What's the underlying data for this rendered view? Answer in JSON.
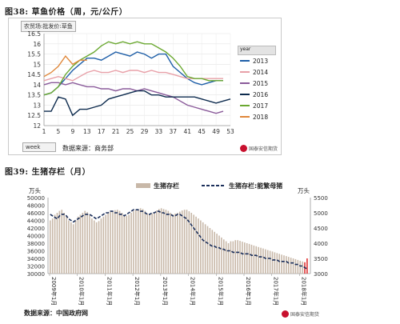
{
  "figures": {
    "fig38_title": "图38: 草鱼价格（周，元/公斤）",
    "fig38_tag": "农贸场:批发价:草鱼",
    "fig38_week_selector": "week",
    "fig38_source": "数据来源：商务部",
    "fig39_title": "图39: 生猪存栏（月）",
    "fig39_source": "数据来源：中国政府网",
    "logo_text": "国泰安信期货",
    "legend_head": "year"
  },
  "colors": {
    "2013": "#1f5fa8",
    "2014": "#e8a0a8",
    "2015": "#8a5a9a",
    "2016": "#0d2b4e",
    "2017": "#6aa830",
    "2018": "#e0873a",
    "bars": "#c8b8a8",
    "bar_highlight": "#e03030",
    "sows_line": "#1a2e5a"
  },
  "chart_data": [
    {
      "type": "line",
      "x_ticks": [
        "1",
        "5",
        "9",
        "13",
        "17",
        "21",
        "25",
        "29",
        "33",
        "37",
        "41",
        "45",
        "49",
        "53"
      ],
      "y_ticks": [
        "12",
        "12.5",
        "13",
        "13.5",
        "14",
        "14.5",
        "15",
        "15.5",
        "16",
        "16.5"
      ],
      "ylim": [
        12,
        16.5
      ],
      "xlim": [
        1,
        53
      ],
      "legend_position": "right",
      "series": [
        {
          "name": "2013",
          "x": [
            1,
            3,
            5,
            7,
            9,
            11,
            13,
            15,
            17,
            19,
            21,
            23,
            25,
            27,
            29,
            31,
            33,
            35,
            37,
            39,
            41,
            43,
            45,
            47,
            49,
            51,
            53
          ],
          "values": [
            13.5,
            13.6,
            13.9,
            14.3,
            14.7,
            15.0,
            15.3,
            15.3,
            15.2,
            15.4,
            15.6,
            15.5,
            15.4,
            15.6,
            15.5,
            15.3,
            15.5,
            15.5,
            14.9,
            14.6,
            14.3,
            14.1,
            14.0,
            14.1,
            14.2,
            14.2,
            null
          ]
        },
        {
          "name": "2014",
          "x": [
            1,
            3,
            5,
            7,
            9,
            11,
            13,
            15,
            17,
            19,
            21,
            23,
            25,
            27,
            29,
            31,
            33,
            35,
            37,
            39,
            41,
            43,
            45,
            47,
            49,
            51,
            53
          ],
          "values": [
            14.2,
            14.3,
            14.4,
            14.3,
            14.2,
            14.4,
            14.6,
            14.7,
            14.6,
            14.6,
            14.7,
            14.6,
            14.7,
            14.7,
            14.6,
            14.7,
            14.6,
            14.6,
            14.5,
            14.4,
            14.3,
            14.3,
            14.3,
            14.3,
            14.3,
            14.3,
            null
          ]
        },
        {
          "name": "2015",
          "x": [
            1,
            3,
            5,
            7,
            9,
            11,
            13,
            15,
            17,
            19,
            21,
            23,
            25,
            27,
            29,
            31,
            33,
            35,
            37,
            39,
            41,
            43,
            45,
            47,
            49,
            51,
            53
          ],
          "values": [
            14.0,
            14.1,
            14.1,
            14.0,
            14.1,
            14.0,
            13.9,
            13.9,
            13.8,
            13.8,
            13.7,
            13.8,
            13.8,
            13.7,
            13.8,
            13.7,
            13.6,
            13.5,
            13.4,
            13.2,
            13.0,
            12.9,
            12.8,
            12.7,
            12.6,
            12.7,
            null
          ]
        },
        {
          "name": "2016",
          "x": [
            1,
            3,
            5,
            7,
            9,
            11,
            13,
            15,
            17,
            19,
            21,
            23,
            25,
            27,
            29,
            31,
            33,
            35,
            37,
            39,
            41,
            43,
            45,
            47,
            49,
            51,
            53
          ],
          "values": [
            12.7,
            12.7,
            13.4,
            13.3,
            12.5,
            12.8,
            12.8,
            12.9,
            13.0,
            13.3,
            13.4,
            13.5,
            13.6,
            13.7,
            13.7,
            13.5,
            13.5,
            13.4,
            13.4,
            13.4,
            13.4,
            13.4,
            13.3,
            13.2,
            13.1,
            13.2,
            13.3
          ]
        },
        {
          "name": "2017",
          "x": [
            1,
            3,
            5,
            7,
            9,
            11,
            13,
            15,
            17,
            19,
            21,
            23,
            25,
            27,
            29,
            31,
            33,
            35,
            37,
            39,
            41,
            43,
            45,
            47,
            49,
            51,
            53
          ],
          "values": [
            13.5,
            13.6,
            13.9,
            14.5,
            14.9,
            15.2,
            15.4,
            15.6,
            15.9,
            16.1,
            16.0,
            16.1,
            16.0,
            16.1,
            16.0,
            16.0,
            15.8,
            15.6,
            15.3,
            14.9,
            14.4,
            14.3,
            14.3,
            14.2,
            14.2,
            14.2,
            null
          ]
        },
        {
          "name": "2018",
          "x": [
            1,
            3,
            5,
            7,
            9,
            11,
            13
          ],
          "values": [
            14.4,
            14.6,
            14.9,
            15.4,
            15.0,
            15.2,
            15.2
          ]
        }
      ]
    },
    {
      "type": "bar",
      "y_axis_label_left": "万头",
      "y_axis_label_right": "万头",
      "left_ticks": [
        "30000",
        "32000",
        "34000",
        "36000",
        "38000",
        "40000",
        "42000",
        "44000",
        "46000",
        "48000",
        "50000"
      ],
      "right_ticks": [
        "3000",
        "3500",
        "4000",
        "4500",
        "5000",
        "5500"
      ],
      "ylim_left": [
        30000,
        50000
      ],
      "ylim_right": [
        3000,
        5500
      ],
      "x_tick_labels": [
        "2009年1月",
        "2010年1月",
        "2011年1月",
        "2012年1月",
        "2013年1月",
        "2014年1月",
        "2015年1月",
        "2016年1月",
        "2017年1月",
        "2018年1月"
      ],
      "series": [
        {
          "name": "生猪存栏",
          "axis": "left",
          "values": [
            44000,
            44500,
            45500,
            46000,
            46500,
            46800,
            46000,
            45000,
            44000,
            43500,
            43000,
            44000,
            45000,
            45500,
            46000,
            46500,
            46200,
            45500,
            44500,
            44000,
            43500,
            43800,
            44500,
            45000,
            45500,
            46000,
            46300,
            46500,
            46700,
            46800,
            46500,
            46000,
            45500,
            45200,
            45500,
            46000,
            46500,
            46800,
            47000,
            47200,
            47000,
            46500,
            45800,
            45500,
            45800,
            46200,
            46600,
            47000,
            47200,
            47000,
            46800,
            46500,
            46000,
            45600,
            45800,
            46000,
            46300,
            46600,
            46800,
            46800,
            46400,
            46000,
            45500,
            45000,
            44500,
            44000,
            43500,
            43000,
            42500,
            42000,
            41500,
            41000,
            40500,
            40000,
            39500,
            39000,
            38500,
            38000,
            38500,
            38500,
            38800,
            38800,
            38600,
            38400,
            38200,
            38000,
            37800,
            37600,
            37400,
            37200,
            37000,
            36800,
            36600,
            36400,
            36200,
            36000,
            35800,
            35600,
            35400,
            35200,
            35000,
            34800,
            34600,
            34400,
            34200,
            34000,
            33800,
            33600,
            33400,
            33200,
            33000,
            34000
          ]
        },
        {
          "name": "生猪存栏:能繁母猪",
          "axis": "right",
          "values": [
            4950,
            4900,
            4850,
            4800,
            4900,
            4950,
            4950,
            4900,
            4800,
            4750,
            4700,
            4750,
            4800,
            4850,
            4900,
            4950,
            4950,
            4950,
            4900,
            4850,
            4800,
            4850,
            4900,
            4950,
            5000,
            5000,
            5050,
            5050,
            5000,
            5000,
            4950,
            4950,
            4900,
            4950,
            5000,
            5050,
            5100,
            5100,
            5100,
            5050,
            5050,
            5000,
            4950,
            4950,
            5000,
            5000,
            5050,
            5050,
            5000,
            5000,
            4950,
            4950,
            4950,
            4900,
            4900,
            4950,
            4950,
            4900,
            4850,
            4800,
            4700,
            4600,
            4500,
            4400,
            4300,
            4200,
            4100,
            4050,
            4000,
            3950,
            3900,
            3900,
            3850,
            3850,
            3800,
            3800,
            3750,
            3750,
            3750,
            3700,
            3700,
            3700,
            3700,
            3650,
            3650,
            3650,
            3650,
            3600,
            3600,
            3600,
            3550,
            3550,
            3550,
            3500,
            3500,
            3500,
            3450,
            3450,
            3450,
            3400,
            3400,
            3400,
            3400,
            3350,
            3350,
            3350,
            3300,
            3300,
            3250,
            3250,
            3200,
            3150
          ]
        }
      ]
    }
  ]
}
